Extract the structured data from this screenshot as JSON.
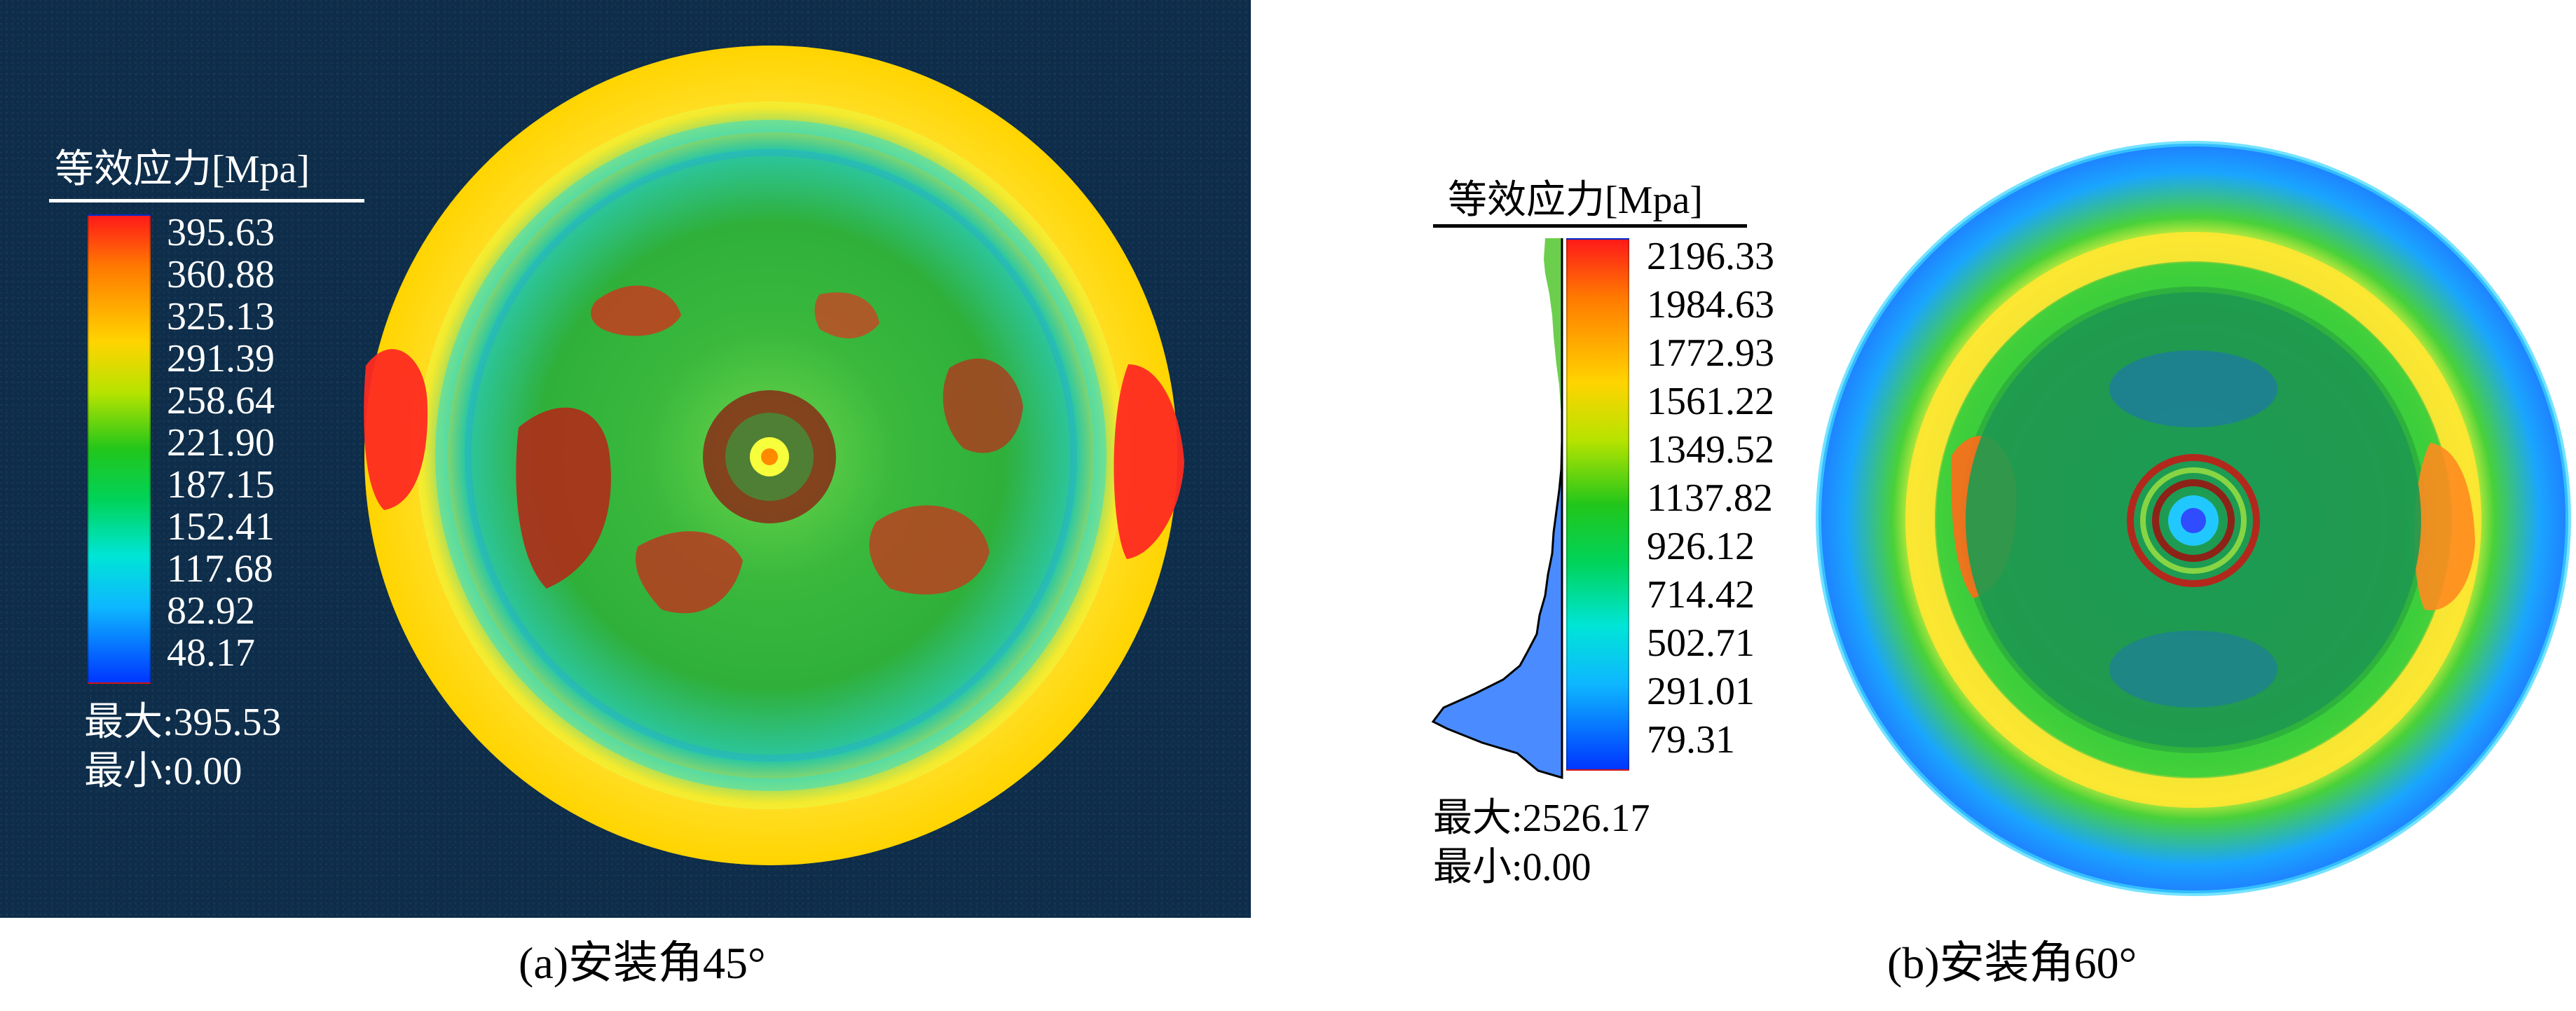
{
  "panels": [
    {
      "legend_title": "等效应力[Mpa]",
      "legend_values": [
        "395.63",
        "360.88",
        "325.13",
        "291.39",
        "258.64",
        "221.90",
        "187.15",
        "152.41",
        "117.68",
        "82.92",
        "48.17"
      ],
      "stats": {
        "max": "最大:395.53",
        "min": "最小:0.00"
      },
      "caption": "(a)安装角45°"
    },
    {
      "legend_title": "等效应力[Mpa]",
      "legend_values": [
        "2196.33",
        "1984.63",
        "1772.93",
        "1561.22",
        "1349.52",
        "1137.82",
        "926.12",
        "714.42",
        "502.71",
        "291.01",
        "79.31"
      ],
      "stats": {
        "max": "最大:2526.17",
        "min": "最小:0.00"
      },
      "caption": "(b)安装角60°"
    }
  ],
  "colors": {
    "panel_a_background": "#0d2d4a",
    "legend_red": "#ff1a1a",
    "legend_orange": "#ff7a00",
    "legend_yellow": "#ffd400",
    "legend_green": "#22c61b",
    "legend_cyan": "#00e5d7",
    "legend_blue": "#0036ff"
  }
}
